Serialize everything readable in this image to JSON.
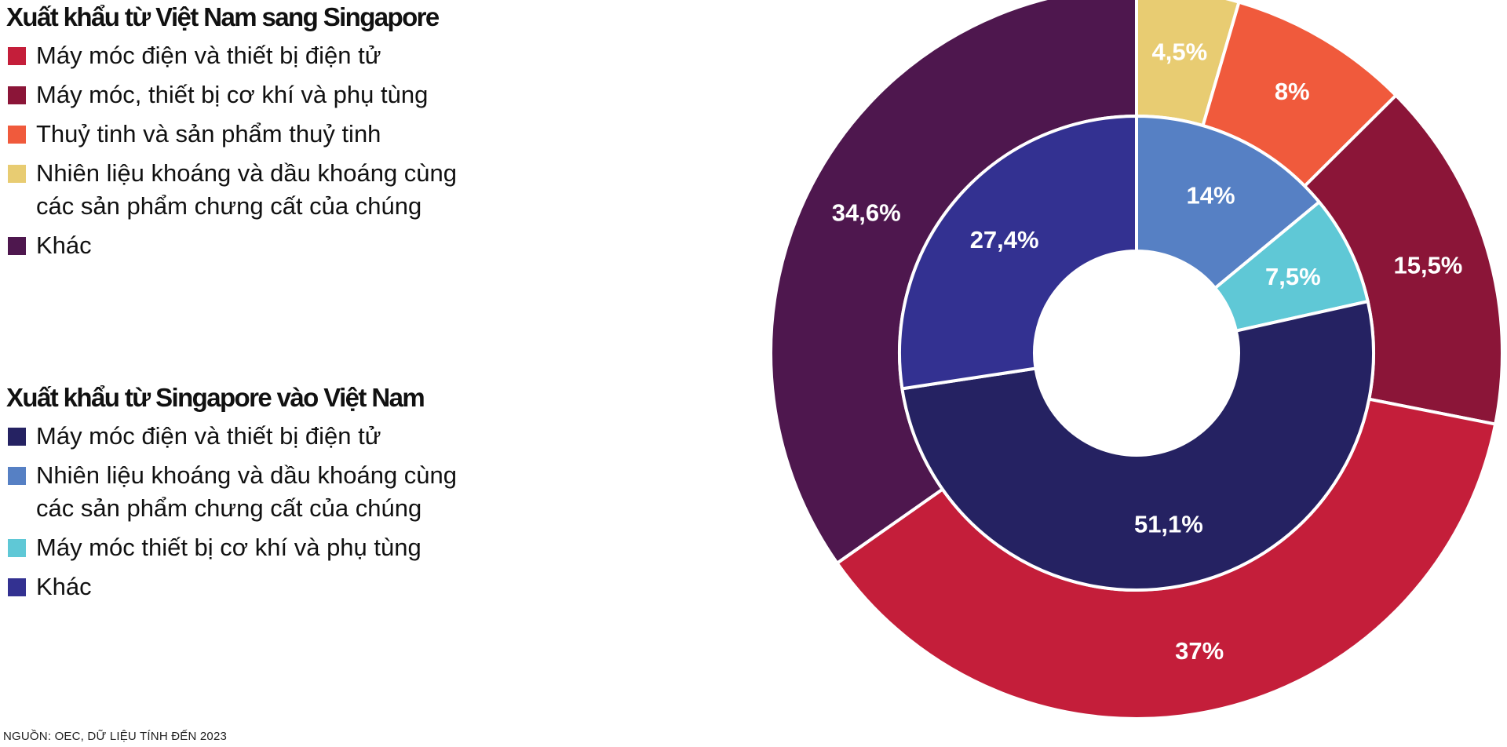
{
  "source_note": "NGUỒN: OEC, DỮ LIỆU TÍNH ĐẾN 2023",
  "legend_outer": {
    "title": "Xuất khẩu từ Việt Nam sang Singapore",
    "items": [
      {
        "label": "Máy móc điện và thiết bị điện tử",
        "color": "#c41e3a"
      },
      {
        "label": "Máy móc, thiết bị cơ khí và phụ tùng",
        "color": "#8b1538"
      },
      {
        "label": "Thuỷ tinh và sản phẩm thuỷ tinh",
        "color": "#f05a3c"
      },
      {
        "label": "Nhiên liệu khoáng và dầu khoáng cùng\ncác sản phẩm chưng cất của chúng",
        "color": "#e8cc72"
      },
      {
        "label": "Khác",
        "color": "#4e174e"
      }
    ]
  },
  "legend_inner": {
    "title": "Xuất khẩu từ Singapore vào Việt Nam",
    "items": [
      {
        "label": "Máy móc điện và thiết bị điện tử",
        "color": "#252262"
      },
      {
        "label": "Nhiên liệu khoáng và dầu khoáng cùng\ncác sản phẩm chưng cất của chúng",
        "color": "#5680c4"
      },
      {
        "label": "Máy móc thiết bị cơ khí và phụ tùng",
        "color": "#5fc8d6"
      },
      {
        "label": "Khác",
        "color": "#333191"
      }
    ]
  },
  "chart_data": [
    {
      "type": "pie",
      "ring": "outer",
      "title": "Xuất khẩu từ Việt Nam sang Singapore",
      "order": "clockwise from top",
      "slices": [
        {
          "name": "Nhiên liệu khoáng và dầu khoáng cùng các sản phẩm chưng cất của chúng",
          "value": 4.5,
          "label": "4,5%",
          "color": "#e8cc72"
        },
        {
          "name": "Thuỷ tinh và sản phẩm thuỷ tinh",
          "value": 8,
          "label": "8%",
          "color": "#f05a3c"
        },
        {
          "name": "Máy móc, thiết bị cơ khí và phụ tùng",
          "value": 15.5,
          "label": "15,5%",
          "color": "#8b1538"
        },
        {
          "name": "Máy móc điện và thiết bị điện tử",
          "value": 37,
          "label": "37%",
          "color": "#c41e3a"
        },
        {
          "name": "Khác",
          "value": 34.6,
          "label": "34,6%",
          "color": "#4e174e"
        }
      ]
    },
    {
      "type": "pie",
      "ring": "inner",
      "title": "Xuất khẩu từ Singapore vào Việt Nam",
      "order": "clockwise from top",
      "slices": [
        {
          "name": "Nhiên liệu khoáng và dầu khoáng cùng các sản phẩm chưng cất của chúng",
          "value": 14,
          "label": "14%",
          "color": "#5680c4"
        },
        {
          "name": "Máy móc thiết bị cơ khí và phụ tùng",
          "value": 7.5,
          "label": "7,5%",
          "color": "#5fc8d6"
        },
        {
          "name": "Máy móc điện và thiết bị điện tử",
          "value": 51.1,
          "label": "51,1%",
          "color": "#252262"
        },
        {
          "name": "Khác",
          "value": 27.4,
          "label": "27,4%",
          "color": "#333191"
        }
      ]
    }
  ]
}
